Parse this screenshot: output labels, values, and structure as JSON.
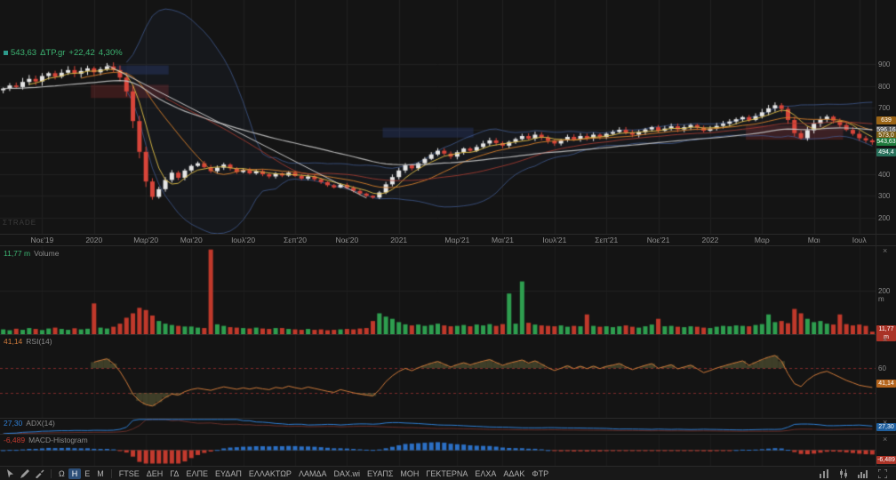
{
  "header": {
    "last_price": "543,63",
    "symbol": "ΔTP.gr",
    "change": "+22,42",
    "change_pct": "4,30%"
  },
  "watermark": "ΣTRADE",
  "icons": {
    "close": "×"
  },
  "main_chart": {
    "ylim": [
      127,
      1191
    ],
    "price_axis": [
      {
        "label": "900",
        "value": 900
      },
      {
        "label": "800",
        "value": 800
      },
      {
        "label": "700",
        "value": 700
      },
      {
        "label": "600",
        "value": 600
      },
      {
        "label": "500",
        "value": 500
      },
      {
        "label": "400",
        "value": 400
      },
      {
        "label": "300",
        "value": 300
      },
      {
        "label": "200",
        "value": 200
      }
    ],
    "badges": [
      {
        "text": "639",
        "value": 639,
        "color": "#9a6416"
      },
      {
        "text": "596,16",
        "value": 596.16,
        "color": "#585858"
      },
      {
        "text": "573,0",
        "value": 573,
        "color": "#7a5c14"
      },
      {
        "text": "543,63",
        "value": 543.63,
        "color": "#1e7a3c"
      },
      {
        "text": "494,4",
        "value": 494.4,
        "color": "#27705a"
      }
    ],
    "trendline": {
      "from_index": 16,
      "from_price": 895,
      "to_index": 56,
      "to_price": 290
    },
    "zones": [
      {
        "i0": 14,
        "i1": 25,
        "p0": 745,
        "p1": 805,
        "color": "rgba(150,45,45,0.30)"
      },
      {
        "i0": 18,
        "i1": 25,
        "p0": 852,
        "p1": 893,
        "color": "rgba(45,70,140,0.30)"
      },
      {
        "i0": 59,
        "i1": 72,
        "p0": 565,
        "p1": 610,
        "color": "rgba(45,70,140,0.30)"
      },
      {
        "i0": 115,
        "i1": 129,
        "p0": 555,
        "p1": 620,
        "color": "rgba(150,45,45,0.30)"
      }
    ],
    "colors": {
      "up": "#e6e6e6",
      "down": "#d8453a",
      "grid": "#212121",
      "ma_fast": "#d9b844",
      "ma_mid": "#d07b2a",
      "ma_slow": "#a83c30",
      "ma_long": "#c4c4c4",
      "band": "#46639c",
      "trend": "#d8d8d8"
    }
  },
  "time_axis": [
    {
      "label": "Νοε'19",
      "index": 6
    },
    {
      "label": "2020",
      "index": 14
    },
    {
      "label": "Μαρ'20",
      "index": 22
    },
    {
      "label": "Μαι'20",
      "index": 29
    },
    {
      "label": "Ιουλ'20",
      "index": 37
    },
    {
      "label": "Σεπ'20",
      "index": 45
    },
    {
      "label": "Νοε'20",
      "index": 53
    },
    {
      "label": "2021",
      "index": 61
    },
    {
      "label": "Μαρ'21",
      "index": 70
    },
    {
      "label": "Μαι'21",
      "index": 77
    },
    {
      "label": "Ιουλ'21",
      "index": 85
    },
    {
      "label": "Σεπ'21",
      "index": 93
    },
    {
      "label": "Νοε'21",
      "index": 101
    },
    {
      "label": "2022",
      "index": 109
    },
    {
      "label": "Μαρ",
      "index": 117
    },
    {
      "label": "Μαι",
      "index": 125
    },
    {
      "label": "Ιουλ",
      "index": 132
    }
  ],
  "chart_data": {
    "type": "candlestick",
    "symbol": "ΔTP.gr",
    "indicators": [
      "Volume",
      "RSI(14)",
      "ADX(14)",
      "MACD-Histogram"
    ],
    "closes": [
      788,
      802,
      795,
      818,
      832,
      820,
      845,
      858,
      842,
      860,
      872,
      855,
      868,
      880,
      862,
      876,
      889,
      872,
      838,
      775,
      640,
      500,
      365,
      295,
      330,
      372,
      405,
      382,
      415,
      436,
      448,
      430,
      412,
      428,
      442,
      425,
      408,
      418,
      402,
      412,
      398,
      388,
      402,
      392,
      405,
      390,
      378,
      388,
      375,
      362,
      348,
      338,
      350,
      336,
      322,
      310,
      300,
      292,
      315,
      352,
      385,
      415,
      438,
      425,
      448,
      468,
      488,
      505,
      492,
      478,
      498,
      515,
      505,
      522,
      538,
      552,
      540,
      528,
      545,
      558,
      572,
      560,
      578,
      565,
      550,
      538,
      552,
      568,
      556,
      572,
      562,
      578,
      568,
      582,
      590,
      600,
      588,
      578,
      590,
      602,
      612,
      596,
      606,
      616,
      602,
      612,
      622,
      610,
      596,
      606,
      618,
      628,
      638,
      648,
      658,
      645,
      662,
      680,
      698,
      712,
      695,
      645,
      585,
      562,
      598,
      628,
      648,
      660,
      642,
      622,
      600,
      582,
      562,
      552,
      543.63
    ],
    "volumes": [
      22,
      18,
      25,
      20,
      28,
      24,
      19,
      26,
      30,
      24,
      20,
      27,
      22,
      25,
      140,
      30,
      26,
      34,
      48,
      75,
      95,
      120,
      110,
      85,
      60,
      48,
      42,
      38,
      35,
      35,
      30,
      28,
      385,
      45,
      38,
      32,
      30,
      28,
      26,
      30,
      26,
      24,
      28,
      28,
      24,
      22,
      20,
      24,
      20,
      22,
      18,
      20,
      22,
      24,
      22,
      26,
      28,
      60,
      95,
      80,
      70,
      55,
      45,
      40,
      44,
      38,
      42,
      48,
      40,
      36,
      38,
      42,
      36,
      44,
      40,
      46,
      38,
      46,
      185,
      48,
      240,
      52,
      44,
      40,
      38,
      36,
      40,
      34,
      38,
      36,
      90,
      38,
      34,
      36,
      32,
      36,
      40,
      34,
      30,
      36,
      44,
      70,
      36,
      38,
      34,
      32,
      36,
      34,
      30,
      28,
      34,
      38,
      36,
      40,
      38,
      36,
      42,
      46,
      90,
      55,
      60,
      50,
      115,
      95,
      70,
      55,
      60,
      48,
      44,
      90,
      46,
      40,
      44,
      38,
      11.77
    ]
  },
  "panels": {
    "volume": {
      "value": "11,77 m",
      "name": "Volume",
      "axis_label": "200 m",
      "axis_value": 200,
      "vmax": 400,
      "badge": "11,77 m",
      "badge_color": "#a93226",
      "up_color": "#2e9e4f",
      "down_color": "#c0392b"
    },
    "rsi": {
      "value": "41,14",
      "name": "RSI(14)",
      "badge": "41,14",
      "badge_value": 41.14,
      "level_label": "60",
      "levels": [
        60,
        30
      ],
      "line_color": "#cf7a3a",
      "badge_color": "#b5651d"
    },
    "adx": {
      "value": "27,30",
      "name": "ADX(14)",
      "badge": "27,30",
      "line_color": "#2f7fd4",
      "badge_color": "#1f5f9e"
    },
    "macd": {
      "value": "-6,489",
      "name": "MACD-Histogram",
      "badge": "-6,489",
      "pos_color": "#2b6fc4",
      "neg_color": "#c23a2e",
      "badge_color": "#a93226"
    }
  },
  "toolbar": {
    "tool_icons": [
      "pointer-icon",
      "pencil-icon",
      "brush-icon"
    ],
    "timeframes": [
      {
        "label": "Ω",
        "active": false
      },
      {
        "label": "Η",
        "active": true
      },
      {
        "label": "Ε",
        "active": false
      },
      {
        "label": "Μ",
        "active": false
      }
    ],
    "tickers": [
      "FTSE",
      "ΔΕΗ",
      "ΓΔ",
      "ΕΛΠΕ",
      "ΕΥΔΑΠ",
      "ΕΛΛΑΚΤΩΡ",
      "ΛΑΜΔΑ",
      "DAX.wi",
      "ΕΥΑΠΣ",
      "ΜΟΗ",
      "ΓΕΚΤΕΡΝΑ",
      "ΕΛΧΑ",
      "ΑΔΑΚ",
      "ΦΤΡ"
    ],
    "right_icons": [
      "bar-chart-icon",
      "candlestick-icon",
      "histogram-icon",
      "expand-icon"
    ]
  }
}
